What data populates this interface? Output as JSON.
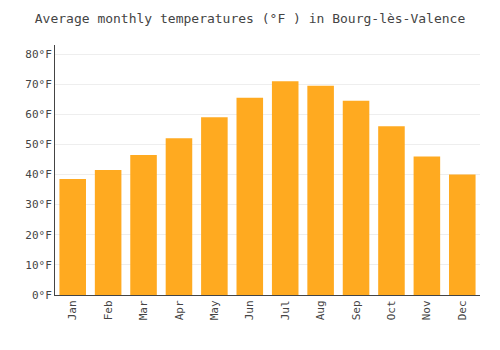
{
  "chart_data": {
    "type": "bar",
    "title": "Average monthly temperatures (°F ) in Bourg-lès-Valence",
    "categories": [
      "Jan",
      "Feb",
      "Mar",
      "Apr",
      "May",
      "Jun",
      "Jul",
      "Aug",
      "Sep",
      "Oct",
      "Nov",
      "Dec"
    ],
    "values": [
      38.5,
      41.5,
      46.5,
      52.0,
      59.0,
      65.5,
      71.0,
      69.5,
      64.5,
      56.0,
      46.0,
      40.0
    ],
    "color": "#FFAA20",
    "ylim": [
      0,
      83
    ],
    "yticks": [
      {
        "value": 0,
        "label": "0°F"
      },
      {
        "value": 10,
        "label": "10°F"
      },
      {
        "value": 20,
        "label": "20°F"
      },
      {
        "value": 30,
        "label": "30°F"
      },
      {
        "value": 40,
        "label": "40°F"
      },
      {
        "value": 50,
        "label": "50°F"
      },
      {
        "value": 60,
        "label": "60°F"
      },
      {
        "value": 70,
        "label": "70°F"
      },
      {
        "value": 80,
        "label": "80°F"
      }
    ],
    "grid": true
  }
}
